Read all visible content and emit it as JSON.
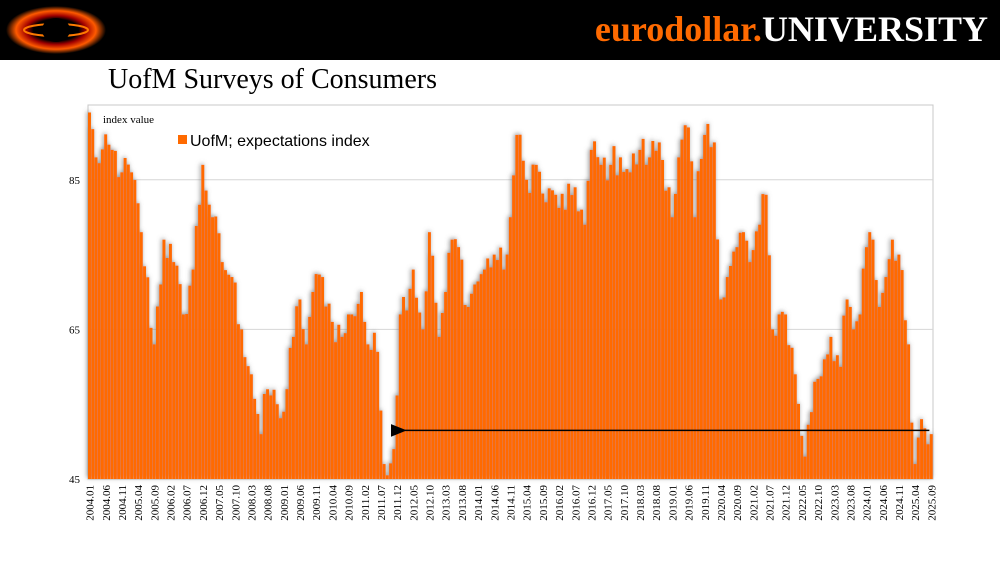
{
  "header": {
    "brand_part1": "eurodollar.",
    "brand_part2": "UNIVERSITY",
    "logo_icon": "eurodollar-logo-icon",
    "colors": {
      "brand_orange": "#ff6a00",
      "bar": "#ff6a00",
      "header_bg": "#000000"
    }
  },
  "slide": {
    "title": "UofM Surveys of Consumers"
  },
  "chart_data": {
    "type": "bar",
    "title": "UofM Surveys of Consumers",
    "ylabel": "index value",
    "ylim": [
      45,
      95
    ],
    "yticks": [
      45,
      65,
      85
    ],
    "grid": true,
    "legend": "top-left",
    "series": [
      {
        "name": "UofM; expectations index",
        "color": "#ff6a00"
      }
    ],
    "x_tick_labels": [
      "2004.01",
      "2004.06",
      "2004.11",
      "2005.04",
      "2005.09",
      "2006.02",
      "2006.07",
      "2006.12",
      "2007.05",
      "2007.10",
      "2008.03",
      "2008.08",
      "2009.01",
      "2009.06",
      "2009.11",
      "2010.04",
      "2010.09",
      "2011.02",
      "2011.07",
      "2011.12",
      "2012.05",
      "2012.10",
      "2013.03",
      "2013.08",
      "2014.01",
      "2014.06",
      "2014.11",
      "2015.04",
      "2015.09",
      "2016.02",
      "2016.07",
      "2016.12",
      "2017.05",
      "2017.10",
      "2018.03",
      "2018.08",
      "2019.01",
      "2019.06",
      "2019.11",
      "2020.04",
      "2020.09",
      "2021.02",
      "2021.07",
      "2021.12",
      "2022.05",
      "2022.10",
      "2023.03",
      "2023.08",
      "2024.01",
      "2024.06",
      "2024.11",
      "2025.04",
      "2025.09"
    ],
    "keypoints": [
      [
        "2004.01",
        94
      ],
      [
        "2004.03",
        88
      ],
      [
        "2004.08",
        89
      ],
      [
        "2004.11",
        86
      ],
      [
        "2005.02",
        86
      ],
      [
        "2005.05",
        78
      ],
      [
        "2005.09",
        63
      ],
      [
        "2005.12",
        77
      ],
      [
        "2006.03",
        74
      ],
      [
        "2006.06",
        67
      ],
      [
        "2006.09",
        73
      ],
      [
        "2006.12",
        87
      ],
      [
        "2007.03",
        80
      ],
      [
        "2007.06",
        74
      ],
      [
        "2007.09",
        72
      ],
      [
        "2007.12",
        65
      ],
      [
        "2008.03",
        59
      ],
      [
        "2008.06",
        51
      ],
      [
        "2008.08",
        57
      ],
      [
        "2008.11",
        55
      ],
      [
        "2009.01",
        54
      ],
      [
        "2009.04",
        64
      ],
      [
        "2009.06",
        69
      ],
      [
        "2009.08",
        63
      ],
      [
        "2009.10",
        70
      ],
      [
        "2010.01",
        72
      ],
      [
        "2010.04",
        66
      ],
      [
        "2010.07",
        64
      ],
      [
        "2010.10",
        67
      ],
      [
        "2011.01",
        70
      ],
      [
        "2011.03",
        63
      ],
      [
        "2011.06",
        62
      ],
      [
        "2011.08",
        47
      ],
      [
        "2011.11",
        49
      ],
      [
        "2012.01",
        67
      ],
      [
        "2012.05",
        73
      ],
      [
        "2012.08",
        65
      ],
      [
        "2012.10",
        78
      ],
      [
        "2013.01",
        64
      ],
      [
        "2013.03",
        70
      ],
      [
        "2013.05",
        77
      ],
      [
        "2013.07",
        76
      ],
      [
        "2013.10",
        68
      ],
      [
        "2013.12",
        71
      ],
      [
        "2014.03",
        73
      ],
      [
        "2014.06",
        75
      ],
      [
        "2014.09",
        73
      ],
      [
        "2014.11",
        80
      ],
      [
        "2015.01",
        91
      ],
      [
        "2015.04",
        85
      ],
      [
        "2015.07",
        87
      ],
      [
        "2015.10",
        82
      ],
      [
        "2016.01",
        83
      ],
      [
        "2016.04",
        81
      ],
      [
        "2016.07",
        84
      ],
      [
        "2016.10",
        79
      ],
      [
        "2016.12",
        89
      ],
      [
        "2017.03",
        87
      ],
      [
        "2017.06",
        87
      ],
      [
        "2017.09",
        88
      ],
      [
        "2017.12",
        86
      ],
      [
        "2018.03",
        89
      ],
      [
        "2018.06",
        88
      ],
      [
        "2018.09",
        90
      ],
      [
        "2018.12",
        84
      ],
      [
        "2019.01",
        80
      ],
      [
        "2019.03",
        88
      ],
      [
        "2019.06",
        92
      ],
      [
        "2019.08",
        80
      ],
      [
        "2019.11",
        91
      ],
      [
        "2020.02",
        90
      ],
      [
        "2020.04",
        69
      ],
      [
        "2020.06",
        72
      ],
      [
        "2020.09",
        76
      ],
      [
        "2020.11",
        78
      ],
      [
        "2021.01",
        74
      ],
      [
        "2021.04",
        79
      ],
      [
        "2021.06",
        83
      ],
      [
        "2021.08",
        65
      ],
      [
        "2021.10",
        67
      ],
      [
        "2021.12",
        67
      ],
      [
        "2022.03",
        59
      ],
      [
        "2022.06",
        48
      ],
      [
        "2022.09",
        58
      ],
      [
        "2022.12",
        61
      ],
      [
        "2023.02",
        64
      ],
      [
        "2023.05",
        60
      ],
      [
        "2023.07",
        69
      ],
      [
        "2023.09",
        65
      ],
      [
        "2023.11",
        67
      ],
      [
        "2024.01",
        76
      ],
      [
        "2024.03",
        77
      ],
      [
        "2024.05",
        68
      ],
      [
        "2024.07",
        72
      ],
      [
        "2024.09",
        77
      ],
      [
        "2024.11",
        75
      ],
      [
        "2025.02",
        63
      ],
      [
        "2025.04",
        47
      ],
      [
        "2025.06",
        53
      ],
      [
        "2025.09",
        51
      ]
    ],
    "annotation": {
      "type": "arrow",
      "direction": "left",
      "from": "2025.09",
      "to": "2011.12",
      "value": 51.5
    }
  }
}
